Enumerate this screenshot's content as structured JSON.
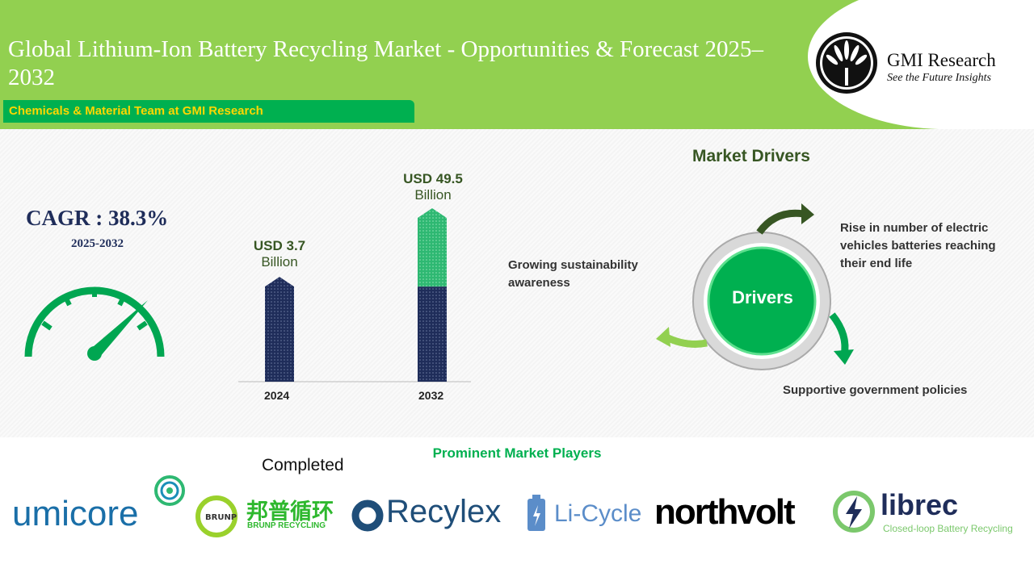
{
  "header": {
    "title": "Global Lithium-Ion Battery Recycling Market - Opportunities & Forecast 2025–2032",
    "team": "Chemicals & Material Team at GMI Research",
    "brand": "GMI Research",
    "tagline": "See the Future Insights"
  },
  "cagr": {
    "label": "CAGR : 38.3%",
    "period": "2025-2032"
  },
  "chart_data": {
    "type": "bar",
    "categories": [
      "2024",
      "2032"
    ],
    "values": [
      3.7,
      49.5
    ],
    "data_labels": [
      [
        "USD 3.7",
        "Billion"
      ],
      [
        "USD 49.5",
        "Billion"
      ]
    ],
    "unit": "USD Billion",
    "colors": {
      "bar": "#1f2d5a",
      "highlight": "#2eb872"
    }
  },
  "drivers": {
    "title": "Market Drivers",
    "center": "Drivers",
    "items": [
      "Rise in number of  electric vehicles batteries reaching their end life",
      "Supportive government policies",
      "Growing sustainability awareness"
    ]
  },
  "players": {
    "title": "Prominent Market Players",
    "status": "Completed",
    "logos": [
      "umicore",
      "邦普循环",
      "BRUNP RECYCLING",
      "Recylex",
      "Li-Cycle",
      "northvolt",
      "librec",
      "Closed-loop Battery Recycling"
    ]
  }
}
